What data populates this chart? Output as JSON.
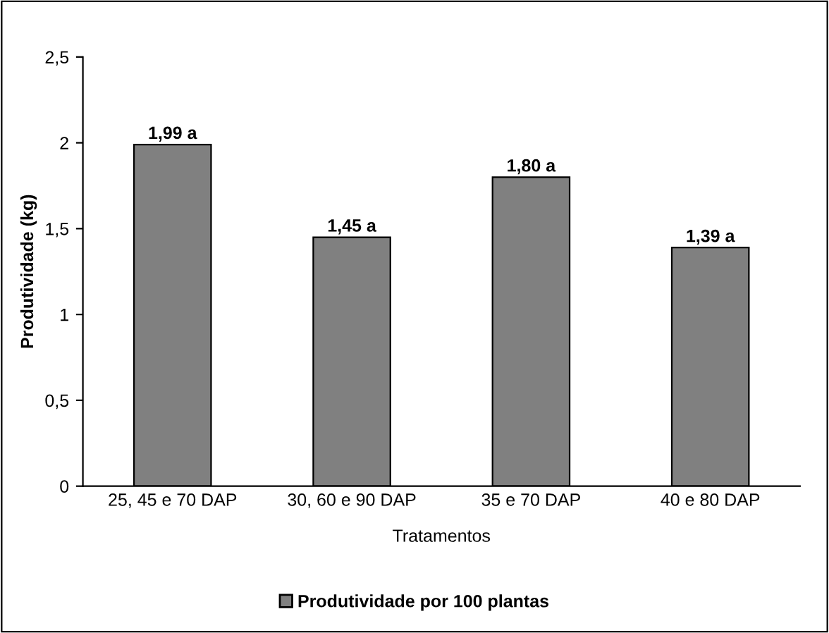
{
  "chart_data": {
    "type": "bar",
    "xlabel": "Tratamentos",
    "ylabel": "Produtividade (kg)",
    "categories": [
      "25, 45 e 70 DAP",
      "30, 60 e 90 DAP",
      "35 e 70 DAP",
      "40 e 80 DAP"
    ],
    "series": [
      {
        "name": "Produtividade por 100 plantas",
        "color": "#808080",
        "values": [
          1.99,
          1.45,
          1.8,
          1.39
        ],
        "value_labels": [
          "1,99 a",
          "1,45 a",
          "1,80 a",
          "1,39 a"
        ]
      }
    ],
    "ylim": [
      0,
      2.5
    ],
    "yticks": [
      0,
      {
        "value": 0.5,
        "label": "0,5"
      },
      1,
      {
        "value": 1.5,
        "label": "1,5"
      },
      2,
      {
        "value": 2.5,
        "label": "2,5"
      }
    ],
    "grid": false,
    "legend": "bottom"
  }
}
